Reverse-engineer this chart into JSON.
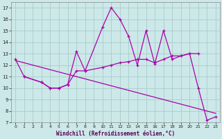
{
  "xlabel": "Windchill (Refroidissement éolien,°C)",
  "bg_color": "#cce8e8",
  "line_color": "#aa00aa",
  "grid_color": "#aacccc",
  "ylim": [
    7,
    17.5
  ],
  "xlim": [
    -0.5,
    23.5
  ],
  "yticks": [
    7,
    8,
    9,
    10,
    11,
    12,
    13,
    14,
    15,
    16,
    17
  ],
  "xticks": [
    0,
    1,
    2,
    3,
    4,
    5,
    6,
    7,
    8,
    9,
    10,
    11,
    12,
    13,
    14,
    15,
    16,
    17,
    18,
    19,
    20,
    21,
    22,
    23
  ],
  "curve_main": {
    "x": [
      0,
      1,
      3,
      4,
      5,
      6,
      7,
      8,
      10,
      11,
      12,
      13,
      14,
      15,
      16,
      17,
      18,
      19,
      20,
      21,
      22,
      23
    ],
    "y": [
      12.5,
      11.0,
      10.5,
      10.0,
      10.0,
      10.3,
      13.2,
      11.5,
      15.3,
      17.0,
      16.0,
      14.5,
      12.0,
      15.0,
      12.1,
      15.0,
      12.5,
      12.8,
      13.0,
      10.0,
      7.2,
      7.5
    ]
  },
  "curve_mid": {
    "x": [
      1,
      3,
      4,
      5,
      6,
      7,
      8,
      10,
      11,
      12,
      13,
      14,
      15,
      16,
      17,
      18,
      19,
      20,
      21
    ],
    "y": [
      11.0,
      10.5,
      10.0,
      10.0,
      10.3,
      11.5,
      11.5,
      11.8,
      12.0,
      12.2,
      12.3,
      12.5,
      12.5,
      12.2,
      12.5,
      12.8,
      12.8,
      13.0,
      13.0
    ]
  },
  "curve_trend": {
    "x": [
      0,
      23
    ],
    "y": [
      12.4,
      7.8
    ]
  }
}
